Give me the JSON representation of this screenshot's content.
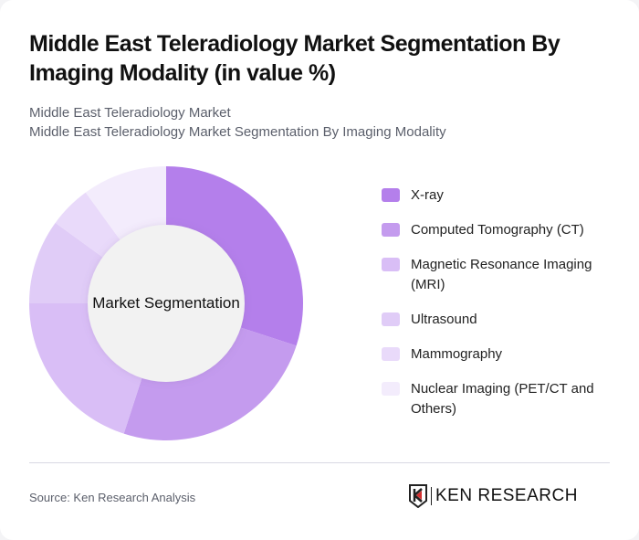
{
  "header": {
    "title": "Middle East Teleradiology Market Segmentation By Imaging Modality (in value %)",
    "subtitle_line1": "Middle East Teleradiology Market",
    "subtitle_line2": "Middle East Teleradiology Market Segmentation By Imaging Modality"
  },
  "chart": {
    "center_label": "Market Segmentation"
  },
  "legend": {
    "items": [
      {
        "label": "X-ray",
        "color": "#B47FEB"
      },
      {
        "label": "Computed Tomography (CT)",
        "color": "#C49BEE"
      },
      {
        "label": "Magnetic Resonance Imaging (MRI)",
        "color": "#D9BEF6"
      },
      {
        "label": "Ultrasound",
        "color": "#E0CCF7"
      },
      {
        "label": "Mammography",
        "color": "#E9DAFA"
      },
      {
        "label": "Nuclear Imaging (PET/CT and Others)",
        "color": "#F3ECFC"
      }
    ]
  },
  "footer": {
    "source": "Source: Ken Research Analysis",
    "logo_text": "KEN RESEARCH"
  },
  "chart_data": {
    "type": "pie",
    "subtype": "donut",
    "title": "Middle East Teleradiology Market Segmentation By Imaging Modality (in value %)",
    "center_label": "Market Segmentation",
    "categories": [
      "X-ray",
      "Computed Tomography (CT)",
      "Magnetic Resonance Imaging (MRI)",
      "Ultrasound",
      "Mammography",
      "Nuclear Imaging (PET/CT and Others)"
    ],
    "values": [
      30,
      25,
      20,
      10,
      5,
      10
    ],
    "colors": [
      "#B47FEB",
      "#C49BEE",
      "#D9BEF6",
      "#E0CCF7",
      "#E9DAFA",
      "#F3ECFC"
    ],
    "start_angle_deg": 0,
    "direction": "clockwise",
    "legend_position": "right",
    "unit": "%"
  }
}
